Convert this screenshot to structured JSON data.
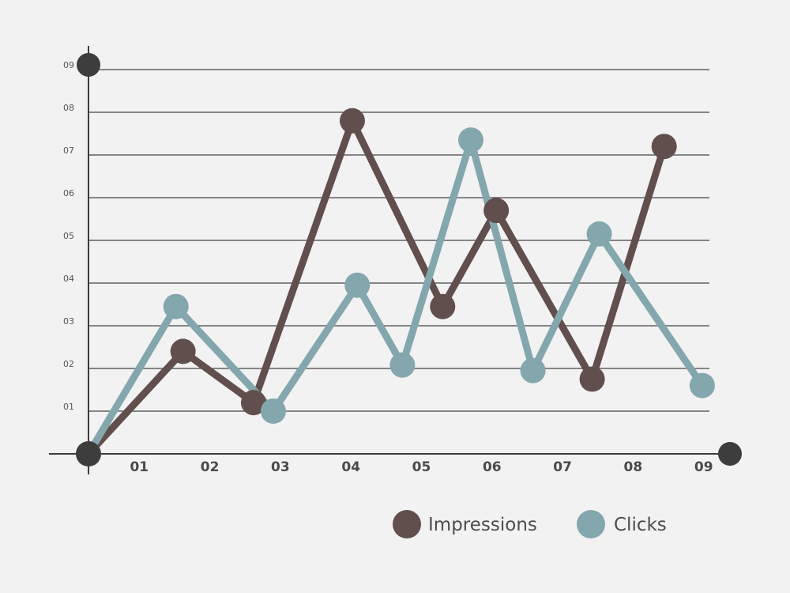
{
  "chart_data": {
    "type": "line",
    "title": "",
    "xlabel": "",
    "ylabel": "",
    "x_ticks": [
      "01",
      "02",
      "03",
      "04",
      "05",
      "06",
      "07",
      "08",
      "09"
    ],
    "y_ticks": [
      "01",
      "02",
      "03",
      "04",
      "05",
      "06",
      "07",
      "08",
      "09"
    ],
    "xlim": [
      0,
      9
    ],
    "ylim": [
      0,
      9
    ],
    "grid": true,
    "legend_position": "bottom-right",
    "series": [
      {
        "name": "Impressions",
        "color": "#614f4e",
        "points": [
          [
            0,
            0
          ],
          [
            1.34,
            2.4
          ],
          [
            2.34,
            1.2
          ],
          [
            3.74,
            7.8
          ],
          [
            5.02,
            3.45
          ],
          [
            5.78,
            5.7
          ],
          [
            7.14,
            1.75
          ],
          [
            8.16,
            7.2
          ]
        ]
      },
      {
        "name": "Clicks",
        "color": "#83a7ac",
        "points": [
          [
            0,
            0
          ],
          [
            1.24,
            3.45
          ],
          [
            2.62,
            1.0
          ],
          [
            3.81,
            3.95
          ],
          [
            4.45,
            2.08
          ],
          [
            5.42,
            7.35
          ],
          [
            6.3,
            1.95
          ],
          [
            7.24,
            5.15
          ],
          [
            8.7,
            1.6
          ]
        ]
      }
    ]
  }
}
